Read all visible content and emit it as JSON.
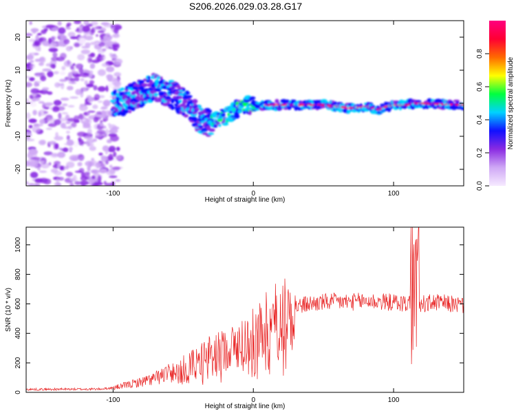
{
  "title": "S206.2026.029.03.28.G17",
  "chart_data": [
    {
      "type": "heatmap",
      "xlabel": "Height of straight line (km)",
      "ylabel": "Frequency (Hz)",
      "xlim": [
        -162,
        150
      ],
      "ylim": [
        -25,
        25
      ],
      "xticks": [
        -100,
        0,
        100
      ],
      "xtick_labels": [
        "-100",
        "0",
        "100"
      ],
      "yticks": [
        -20,
        -10,
        0,
        10,
        20
      ],
      "ytick_labels": [
        "-20",
        "-10",
        "0",
        "10",
        "20"
      ],
      "colorbar": {
        "label": "Normalized spectral amplitude",
        "range": [
          0,
          1
        ],
        "ticks": [
          0.0,
          0.2,
          0.4,
          0.6,
          0.8
        ],
        "tick_labels": [
          "0.0",
          "0.2",
          "0.4",
          "0.6",
          "0.8"
        ],
        "colors": [
          "#f6eaff",
          "#cfa8f5",
          "#8a2be2",
          "#1010ff",
          "#00d2ff",
          "#00ff40",
          "#ffff00",
          "#ff6a00",
          "#ff0033",
          "#ff007f"
        ]
      },
      "ridge": {
        "x": [
          -100,
          -90,
          -80,
          -70,
          -65,
          -55,
          -45,
          -38,
          -30,
          -20,
          -10,
          -5,
          0,
          10,
          30,
          50,
          60,
          70,
          80,
          90,
          95,
          100,
          110,
          115,
          150
        ],
        "y": [
          0,
          1,
          3,
          5,
          4,
          2,
          -1,
          -5,
          -6,
          -4,
          -1,
          0,
          -1,
          -0.5,
          -0.5,
          -0.5,
          -1,
          -1.5,
          -1,
          -2,
          -1,
          -0.5,
          -0.5,
          0,
          -0.5
        ]
      }
    },
    {
      "type": "line",
      "xlabel": "Height of straight line (km)",
      "ylabel": "SNR (10 * v/v)",
      "xlim": [
        -162,
        150
      ],
      "ylim": [
        0,
        1120
      ],
      "xticks": [
        -100,
        0,
        100
      ],
      "xtick_labels": [
        "-100",
        "0",
        "100"
      ],
      "yticks": [
        0,
        200,
        400,
        600,
        800,
        1000
      ],
      "ytick_labels": [
        "0",
        "200",
        "400",
        "600",
        "800",
        "1000"
      ],
      "series": [
        {
          "name": "SNR",
          "color": "#e82020",
          "envelope_x": [
            -162,
            -110,
            -100,
            -90,
            -80,
            -70,
            -60,
            -50,
            -40,
            -30,
            -20,
            -10,
            0,
            10,
            20,
            30,
            40,
            50,
            60,
            70,
            80,
            90,
            100,
            110,
            115,
            120,
            130,
            140,
            150
          ],
          "envelope_y": [
            20,
            22,
            30,
            50,
            70,
            95,
            130,
            170,
            220,
            260,
            290,
            330,
            380,
            460,
            540,
            580,
            600,
            610,
            615,
            612,
            620,
            615,
            610,
            600,
            640,
            600,
            610,
            600,
            590
          ]
        }
      ]
    }
  ]
}
